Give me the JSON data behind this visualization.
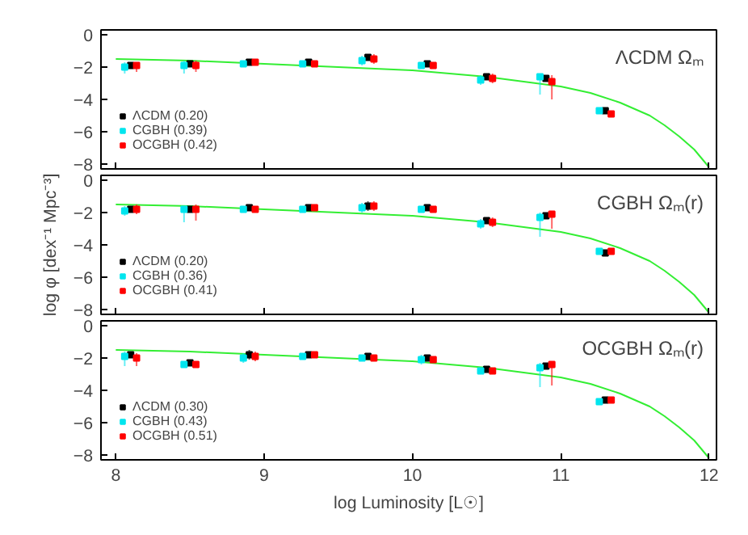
{
  "chart_data": [
    {
      "type": "scatter",
      "annotations": [
        "ΛCDM Ωₘ"
      ],
      "xlim": [
        7.9,
        12.05
      ],
      "ylim": [
        -8.3,
        0.3
      ],
      "xticks": [
        8,
        9,
        10,
        11,
        12
      ],
      "yticks": [
        0,
        {
          "value": -2,
          "label": "−2"
        },
        {
          "value": -4,
          "label": "−4"
        },
        {
          "value": -6,
          "label": "−6"
        },
        {
          "value": -8,
          "label": "−8"
        }
      ],
      "tick_labels": "y",
      "legend": "bottom left",
      "marker": "square",
      "grid": false,
      "series": [
        {
          "type": "line",
          "marker": "none",
          "color": "#33ee33",
          "x": [
            8.0,
            8.5,
            9.0,
            9.5,
            10.0,
            10.5,
            11.0,
            11.2,
            11.4,
            11.6,
            11.7,
            11.8,
            11.9,
            12.0
          ],
          "values": [
            -1.5,
            -1.6,
            -1.8,
            -2.0,
            -2.2,
            -2.6,
            -3.2,
            -3.6,
            -4.2,
            -5.0,
            -5.6,
            -6.3,
            -7.1,
            -8.2
          ]
        },
        {
          "name": "ΛCDM (0.20)",
          "color": "#000000",
          "x": [
            8.1,
            8.5,
            8.9,
            9.3,
            9.7,
            10.1,
            10.5,
            10.9,
            11.3
          ],
          "values": [
            -1.9,
            -1.8,
            -1.7,
            -1.7,
            -1.4,
            -1.8,
            -2.6,
            -2.7,
            -4.7
          ],
          "errors": [
            0.2,
            0.2,
            0.2,
            0.2,
            0.2,
            0.2,
            0.2,
            0.2,
            0.1
          ]
        },
        {
          "name": "CGBH (0.39)",
          "color": "#00e5ee",
          "x": [
            8.06,
            8.46,
            8.86,
            9.26,
            9.66,
            10.06,
            10.46,
            10.86,
            11.26
          ],
          "values": [
            -2.0,
            -1.9,
            -1.8,
            -1.8,
            -1.6,
            -1.9,
            -2.8,
            -2.6,
            -4.7
          ],
          "errors": [
            [
              -2.4,
              -1.7
            ],
            [
              -2.4,
              -1.6
            ],
            0.2,
            0.2,
            0.3,
            0.2,
            0.3,
            [
              -3.7,
              -2.4
            ],
            0.1
          ]
        },
        {
          "name": "OCGBH (0.42)",
          "color": "#ff0000",
          "x": [
            8.14,
            8.54,
            8.94,
            9.34,
            9.74,
            10.14,
            10.54,
            10.94,
            11.34
          ],
          "values": [
            -1.9,
            -1.9,
            -1.7,
            -1.8,
            -1.5,
            -1.9,
            -2.7,
            -2.9,
            -4.9
          ],
          "errors": [
            [
              -2.3,
              -1.7
            ],
            [
              -2.3,
              -1.6
            ],
            0.2,
            0.2,
            0.3,
            0.2,
            0.3,
            [
              -4.0,
              -2.5
            ],
            0.1
          ]
        }
      ]
    },
    {
      "type": "scatter",
      "annotations": [
        "CGBH Ωₘ(r)"
      ],
      "ylabel": "log φ [dex⁻¹ Mpc⁻³]",
      "xlim": [
        7.9,
        12.05
      ],
      "ylim": [
        -8.3,
        0.3
      ],
      "xticks": [
        8,
        9,
        10,
        11,
        12
      ],
      "yticks": [
        0,
        {
          "value": -2,
          "label": "−2"
        },
        {
          "value": -4,
          "label": "−4"
        },
        {
          "value": -6,
          "label": "−6"
        },
        {
          "value": -8,
          "label": "−8"
        }
      ],
      "tick_labels": "y",
      "legend": "bottom left",
      "marker": "square",
      "grid": false,
      "series": [
        {
          "type": "line",
          "marker": "none",
          "color": "#33ee33",
          "x": [
            8.0,
            8.5,
            9.0,
            9.5,
            10.0,
            10.5,
            11.0,
            11.2,
            11.4,
            11.6,
            11.7,
            11.8,
            11.9,
            12.0
          ],
          "values": [
            -1.5,
            -1.6,
            -1.8,
            -2.0,
            -2.2,
            -2.6,
            -3.2,
            -3.6,
            -4.2,
            -5.0,
            -5.6,
            -6.3,
            -7.1,
            -8.2
          ]
        },
        {
          "name": "ΛCDM (0.20)",
          "color": "#000000",
          "x": [
            8.1,
            8.5,
            8.9,
            9.3,
            9.7,
            10.1,
            10.5,
            10.9,
            11.3
          ],
          "values": [
            -1.8,
            -1.8,
            -1.7,
            -1.7,
            -1.6,
            -1.7,
            -2.5,
            -2.2,
            -4.5
          ],
          "errors": [
            0.2,
            0.2,
            0.2,
            0.2,
            0.3,
            0.2,
            0.2,
            0.2,
            0.1
          ]
        },
        {
          "name": "CGBH (0.36)",
          "color": "#00e5ee",
          "x": [
            8.06,
            8.46,
            8.86,
            9.26,
            9.66,
            10.06,
            10.46,
            10.86,
            11.26
          ],
          "values": [
            -1.9,
            -1.8,
            -1.8,
            -1.8,
            -1.7,
            -1.8,
            -2.7,
            -2.3,
            -4.4
          ],
          "errors": [
            0.3,
            [
              -2.6,
              -1.6
            ],
            0.2,
            0.2,
            0.3,
            0.2,
            0.3,
            [
              -3.5,
              -2.0
            ],
            0.1
          ]
        },
        {
          "name": "OCGBH (0.41)",
          "color": "#ff0000",
          "x": [
            8.14,
            8.54,
            8.94,
            9.34,
            9.74,
            10.14,
            10.54,
            10.94,
            11.34
          ],
          "values": [
            -1.8,
            -1.8,
            -1.8,
            -1.7,
            -1.6,
            -1.8,
            -2.6,
            -2.1,
            -4.4
          ],
          "errors": [
            0.3,
            [
              -2.5,
              -1.5
            ],
            0.2,
            0.2,
            0.3,
            0.2,
            0.3,
            [
              -3.0,
              -1.9
            ],
            0.1
          ]
        }
      ]
    },
    {
      "type": "scatter",
      "annotations": [
        "OCGBH Ωₘ(r)"
      ],
      "xlabel": "log Luminosity [L☉]",
      "xlim": [
        7.9,
        12.05
      ],
      "ylim": [
        -8.3,
        0.3
      ],
      "xticks": [
        8,
        9,
        10,
        11,
        12
      ],
      "yticks": [
        0,
        {
          "value": -2,
          "label": "−2"
        },
        {
          "value": -4,
          "label": "−4"
        },
        {
          "value": -6,
          "label": "−6"
        },
        {
          "value": -8,
          "label": "−8"
        }
      ],
      "legend": "bottom left",
      "marker": "square",
      "grid": false,
      "series": [
        {
          "type": "line",
          "marker": "none",
          "color": "#33ee33",
          "x": [
            8.0,
            8.5,
            9.0,
            9.5,
            10.0,
            10.5,
            11.0,
            11.2,
            11.4,
            11.6,
            11.7,
            11.8,
            11.9,
            12.0
          ],
          "values": [
            -1.5,
            -1.6,
            -1.8,
            -2.0,
            -2.2,
            -2.6,
            -3.2,
            -3.6,
            -4.2,
            -5.0,
            -5.6,
            -6.3,
            -7.1,
            -8.2
          ]
        },
        {
          "name": "ΛCDM (0.30)",
          "color": "#000000",
          "x": [
            8.1,
            8.5,
            8.9,
            9.3,
            9.7,
            10.1,
            10.5,
            10.9,
            11.3
          ],
          "values": [
            -1.8,
            -2.3,
            -1.8,
            -1.8,
            -1.9,
            -2.0,
            -2.7,
            -2.5,
            -4.6
          ],
          "errors": [
            0.2,
            0.2,
            0.3,
            0.2,
            0.2,
            0.2,
            0.2,
            0.2,
            0.1
          ]
        },
        {
          "name": "CGBH (0.43)",
          "color": "#00e5ee",
          "x": [
            8.06,
            8.46,
            8.86,
            9.26,
            9.66,
            10.06,
            10.46,
            10.86,
            11.26
          ],
          "values": [
            -1.9,
            -2.4,
            -2.0,
            -1.9,
            -2.0,
            -2.1,
            -2.8,
            -2.6,
            -4.7
          ],
          "errors": [
            [
              -2.5,
              -1.6
            ],
            0.2,
            0.3,
            0.2,
            0.2,
            0.3,
            0.2,
            [
              -3.8,
              -2.3
            ],
            0.1
          ]
        },
        {
          "name": "OCGBH (0.51)",
          "color": "#ff0000",
          "x": [
            8.14,
            8.54,
            8.94,
            9.34,
            9.74,
            10.14,
            10.54,
            10.94,
            11.34
          ],
          "values": [
            -2.0,
            -2.4,
            -1.9,
            -1.8,
            -2.0,
            -2.1,
            -2.8,
            -2.4,
            -4.6
          ],
          "errors": [
            [
              -2.5,
              -1.7
            ],
            0.2,
            0.3,
            0.2,
            0.2,
            0.2,
            0.2,
            [
              -3.7,
              -2.2
            ],
            0.1
          ]
        }
      ]
    }
  ]
}
